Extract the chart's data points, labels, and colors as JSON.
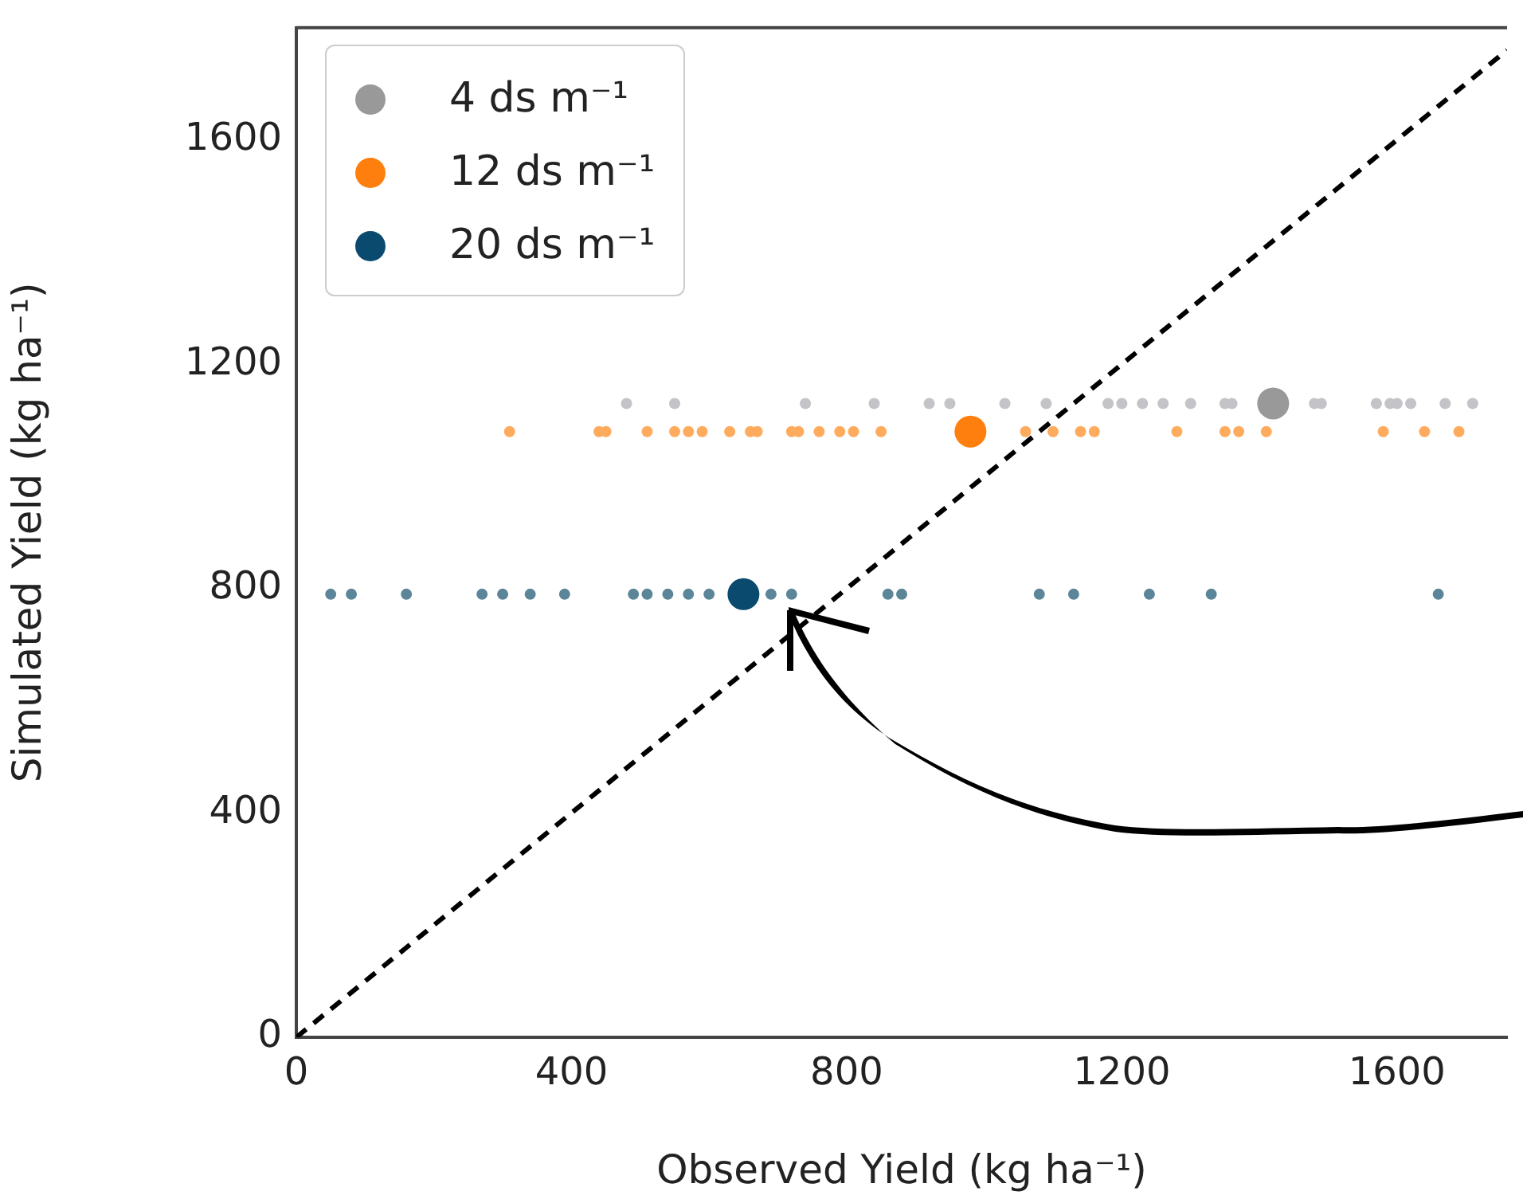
{
  "chart_data": {
    "type": "scatter",
    "xlabel": "Observed Yield (kg ha⁻¹)",
    "ylabel": "Simulated Yield (kg ha⁻¹)",
    "xlim": [
      0,
      1760
    ],
    "ylim": [
      0,
      1800
    ],
    "xticks": [
      0,
      400,
      800,
      1200,
      1600
    ],
    "yticks": [
      0,
      400,
      800,
      1200,
      1600
    ],
    "grid": false,
    "legend": "top left",
    "marker": "circle",
    "series": [
      {
        "color": "#c4c4c8",
        "x": [
          480,
          550,
          740,
          840,
          920,
          950,
          1030,
          1090,
          1180,
          1200,
          1230,
          1260,
          1300,
          1350,
          1360,
          1480,
          1490,
          1570,
          1590,
          1600,
          1620,
          1670,
          1710
        ],
        "values": [
          1130,
          1130,
          1130,
          1130,
          1130,
          1130,
          1130,
          1130,
          1130,
          1130,
          1130,
          1130,
          1130,
          1130,
          1130,
          1130,
          1130,
          1130,
          1130,
          1130,
          1130,
          1130,
          1130
        ]
      },
      {
        "color": "#ffab5e",
        "x": [
          310,
          440,
          450,
          510,
          550,
          570,
          590,
          630,
          660,
          670,
          720,
          730,
          760,
          790,
          810,
          850,
          1060,
          1100,
          1140,
          1160,
          1280,
          1350,
          1370,
          1410,
          1580,
          1640,
          1690
        ],
        "values": [
          1080,
          1080,
          1080,
          1080,
          1080,
          1080,
          1080,
          1080,
          1080,
          1080,
          1080,
          1080,
          1080,
          1080,
          1080,
          1080,
          1080,
          1080,
          1080,
          1080,
          1080,
          1080,
          1080,
          1080,
          1080,
          1080,
          1080
        ]
      },
      {
        "color": "#5b8599",
        "x": [
          50,
          80,
          160,
          270,
          300,
          340,
          390,
          490,
          510,
          540,
          570,
          600,
          690,
          720,
          860,
          880,
          1080,
          1130,
          1240,
          1330,
          1660
        ],
        "values": [
          790,
          790,
          790,
          790,
          790,
          790,
          790,
          790,
          790,
          790,
          790,
          790,
          790,
          790,
          790,
          790,
          790,
          790,
          790,
          790,
          790
        ]
      },
      {
        "name": "4 ds m⁻¹",
        "color": "#999999",
        "x": [
          1420
        ],
        "values": [
          1130
        ]
      },
      {
        "name": "12 ds m⁻¹",
        "color": "#ff7f0e",
        "x": [
          980
        ],
        "values": [
          1080
        ]
      },
      {
        "name": "20 ds m⁻¹",
        "color": "#0a4a6e",
        "x": [
          650
        ],
        "values": [
          790
        ]
      },
      {
        "type": "line",
        "color": "#000000",
        "line_style": "dashed",
        "marker": "none",
        "x": [
          0,
          1760
        ],
        "values": [
          0,
          1760
        ]
      }
    ]
  }
}
